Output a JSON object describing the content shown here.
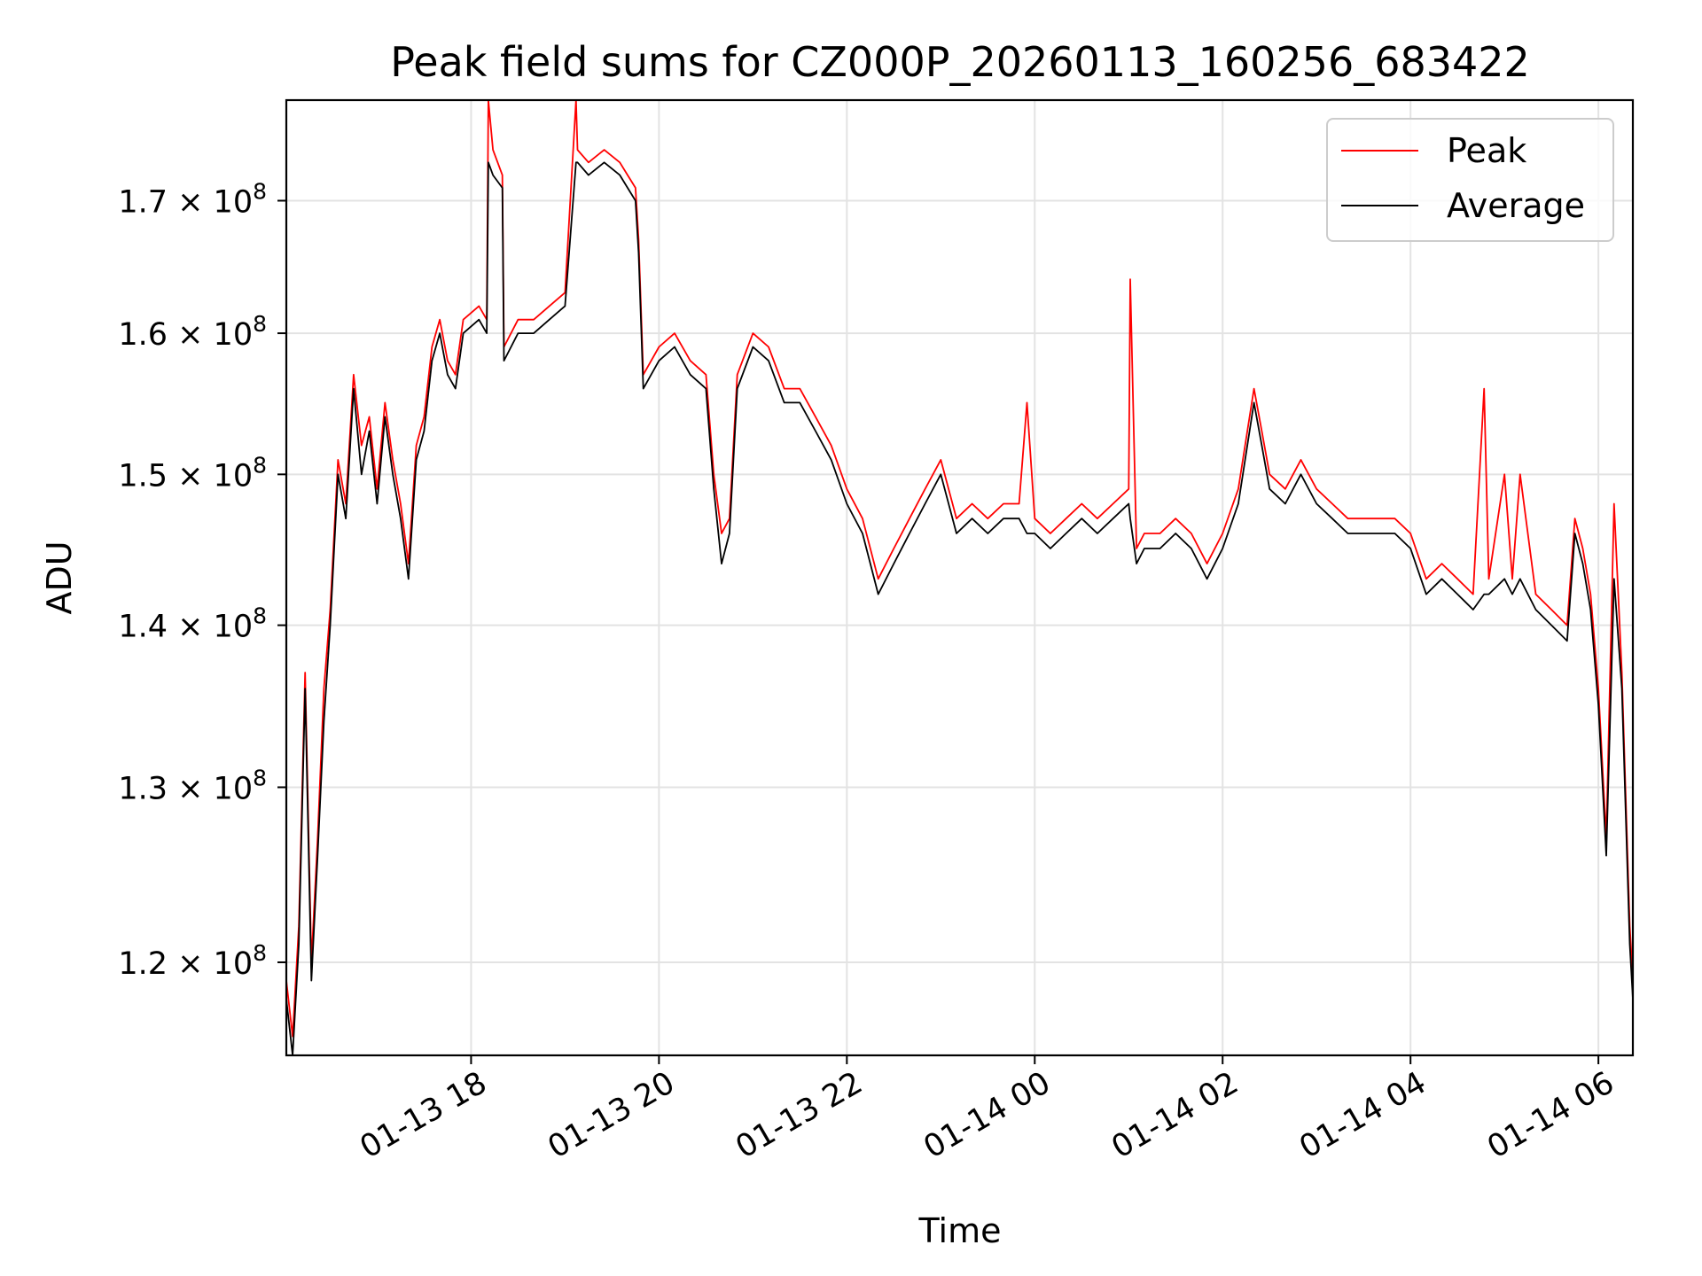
{
  "chart_data": {
    "type": "line",
    "title": "Peak field sums for CZ000P_20260113_160256_683422",
    "xlabel": "Time",
    "ylabel": "ADU",
    "y_scale": "log",
    "grid": true,
    "legend_position": "top-right",
    "xlim": [
      "2026-01-13 16:02",
      "2026-01-14 06:22"
    ],
    "ylim": [
      115000000,
      178000000
    ],
    "x_ticks": [
      {
        "value": "2026-01-13 18:00",
        "label": "01-13 18"
      },
      {
        "value": "2026-01-13 20:00",
        "label": "01-13 20"
      },
      {
        "value": "2026-01-13 22:00",
        "label": "01-13 22"
      },
      {
        "value": "2026-01-14 00:00",
        "label": "01-14 00"
      },
      {
        "value": "2026-01-14 02:00",
        "label": "01-14 02"
      },
      {
        "value": "2026-01-14 04:00",
        "label": "01-14 04"
      },
      {
        "value": "2026-01-14 06:00",
        "label": "01-14 06"
      }
    ],
    "y_ticks": [
      {
        "value": 120000000,
        "mantissa": "1.2",
        "exponent": "8"
      },
      {
        "value": 130000000,
        "mantissa": "1.3",
        "exponent": "8"
      },
      {
        "value": 140000000,
        "mantissa": "1.4",
        "exponent": "8"
      },
      {
        "value": 150000000,
        "mantissa": "1.5",
        "exponent": "8"
      },
      {
        "value": 160000000,
        "mantissa": "1.6",
        "exponent": "8"
      },
      {
        "value": 170000000,
        "mantissa": "1.7",
        "exponent": "8"
      }
    ],
    "series": [
      {
        "name": "Peak",
        "color": "#ff0000",
        "x": [
          "2026-01-13 16:02",
          "2026-01-13 16:06",
          "2026-01-13 16:10",
          "2026-01-13 16:14",
          "2026-01-13 16:18",
          "2026-01-13 16:22",
          "2026-01-13 16:26",
          "2026-01-13 16:30",
          "2026-01-13 16:35",
          "2026-01-13 16:40",
          "2026-01-13 16:45",
          "2026-01-13 16:50",
          "2026-01-13 16:55",
          "2026-01-13 17:00",
          "2026-01-13 17:05",
          "2026-01-13 17:10",
          "2026-01-13 17:15",
          "2026-01-13 17:20",
          "2026-01-13 17:25",
          "2026-01-13 17:30",
          "2026-01-13 17:35",
          "2026-01-13 17:40",
          "2026-01-13 17:45",
          "2026-01-13 17:50",
          "2026-01-13 17:55",
          "2026-01-13 18:05",
          "2026-01-13 18:10",
          "2026-01-13 18:11",
          "2026-01-13 18:14",
          "2026-01-13 18:20",
          "2026-01-13 18:21",
          "2026-01-13 18:30",
          "2026-01-13 18:40",
          "2026-01-13 18:50",
          "2026-01-13 19:00",
          "2026-01-13 19:07",
          "2026-01-13 19:08",
          "2026-01-13 19:15",
          "2026-01-13 19:25",
          "2026-01-13 19:35",
          "2026-01-13 19:40",
          "2026-01-13 19:45",
          "2026-01-13 19:47",
          "2026-01-13 19:50",
          "2026-01-13 20:00",
          "2026-01-13 20:10",
          "2026-01-13 20:20",
          "2026-01-13 20:30",
          "2026-01-13 20:35",
          "2026-01-13 20:40",
          "2026-01-13 20:45",
          "2026-01-13 20:50",
          "2026-01-13 21:00",
          "2026-01-13 21:10",
          "2026-01-13 21:20",
          "2026-01-13 21:30",
          "2026-01-13 21:40",
          "2026-01-13 21:50",
          "2026-01-13 22:00",
          "2026-01-13 22:10",
          "2026-01-13 22:20",
          "2026-01-13 22:30",
          "2026-01-13 22:40",
          "2026-01-13 22:50",
          "2026-01-13 23:00",
          "2026-01-13 23:10",
          "2026-01-13 23:20",
          "2026-01-13 23:30",
          "2026-01-13 23:40",
          "2026-01-13 23:50",
          "2026-01-13 23:55",
          "2026-01-14 00:00",
          "2026-01-14 00:10",
          "2026-01-14 00:20",
          "2026-01-14 00:30",
          "2026-01-14 00:40",
          "2026-01-14 00:50",
          "2026-01-14 01:00",
          "2026-01-14 01:01",
          "2026-01-14 01:05",
          "2026-01-14 01:10",
          "2026-01-14 01:20",
          "2026-01-14 01:30",
          "2026-01-14 01:40",
          "2026-01-14 01:50",
          "2026-01-14 02:00",
          "2026-01-14 02:10",
          "2026-01-14 02:20",
          "2026-01-14 02:25",
          "2026-01-14 02:30",
          "2026-01-14 02:40",
          "2026-01-14 02:50",
          "2026-01-14 03:00",
          "2026-01-14 03:10",
          "2026-01-14 03:20",
          "2026-01-14 03:30",
          "2026-01-14 03:40",
          "2026-01-14 03:50",
          "2026-01-14 04:00",
          "2026-01-14 04:10",
          "2026-01-14 04:20",
          "2026-01-14 04:30",
          "2026-01-14 04:40",
          "2026-01-14 04:47",
          "2026-01-14 04:50",
          "2026-01-14 05:00",
          "2026-01-14 05:05",
          "2026-01-14 05:10",
          "2026-01-14 05:20",
          "2026-01-14 05:30",
          "2026-01-14 05:40",
          "2026-01-14 05:45",
          "2026-01-14 05:50",
          "2026-01-14 05:55",
          "2026-01-14 06:00",
          "2026-01-14 06:05",
          "2026-01-14 06:10",
          "2026-01-14 06:15",
          "2026-01-14 06:20",
          "2026-01-14 06:22"
        ],
        "values": [
          119000000,
          116000000,
          122000000,
          137000000,
          120000000,
          127000000,
          136000000,
          141000000,
          151000000,
          148000000,
          157000000,
          152000000,
          154000000,
          149000000,
          155000000,
          151000000,
          148000000,
          144000000,
          152000000,
          154000000,
          159000000,
          161000000,
          158000000,
          157000000,
          161000000,
          162000000,
          161000000,
          178000000,
          174000000,
          172000000,
          159000000,
          161000000,
          161000000,
          162000000,
          163000000,
          178000000,
          174000000,
          173000000,
          174000000,
          173000000,
          172000000,
          171000000,
          167000000,
          157000000,
          159000000,
          160000000,
          158000000,
          157000000,
          150000000,
          146000000,
          147000000,
          157000000,
          160000000,
          159000000,
          156000000,
          156000000,
          154000000,
          152000000,
          149000000,
          147000000,
          143000000,
          145000000,
          147000000,
          149000000,
          151000000,
          147000000,
          148000000,
          147000000,
          148000000,
          148000000,
          155000000,
          147000000,
          146000000,
          147000000,
          148000000,
          147000000,
          148000000,
          149000000,
          164000000,
          145000000,
          146000000,
          146000000,
          147000000,
          146000000,
          144000000,
          146000000,
          149000000,
          156000000,
          153000000,
          150000000,
          149000000,
          151000000,
          149000000,
          148000000,
          147000000,
          147000000,
          147000000,
          147000000,
          146000000,
          143000000,
          144000000,
          143000000,
          142000000,
          156000000,
          143000000,
          150000000,
          143000000,
          150000000,
          142000000,
          141000000,
          140000000,
          147000000,
          145000000,
          142000000,
          136000000,
          127000000,
          148000000,
          137000000,
          122000000,
          119000000
        ]
      },
      {
        "name": "Average",
        "color": "#000000",
        "x": [
          "2026-01-13 16:02",
          "2026-01-13 16:06",
          "2026-01-13 16:10",
          "2026-01-13 16:14",
          "2026-01-13 16:18",
          "2026-01-13 16:22",
          "2026-01-13 16:26",
          "2026-01-13 16:30",
          "2026-01-13 16:35",
          "2026-01-13 16:40",
          "2026-01-13 16:45",
          "2026-01-13 16:50",
          "2026-01-13 16:55",
          "2026-01-13 17:00",
          "2026-01-13 17:05",
          "2026-01-13 17:10",
          "2026-01-13 17:15",
          "2026-01-13 17:20",
          "2026-01-13 17:25",
          "2026-01-13 17:30",
          "2026-01-13 17:35",
          "2026-01-13 17:40",
          "2026-01-13 17:45",
          "2026-01-13 17:50",
          "2026-01-13 17:55",
          "2026-01-13 18:05",
          "2026-01-13 18:10",
          "2026-01-13 18:11",
          "2026-01-13 18:14",
          "2026-01-13 18:20",
          "2026-01-13 18:21",
          "2026-01-13 18:30",
          "2026-01-13 18:40",
          "2026-01-13 18:50",
          "2026-01-13 19:00",
          "2026-01-13 19:07",
          "2026-01-13 19:08",
          "2026-01-13 19:15",
          "2026-01-13 19:25",
          "2026-01-13 19:35",
          "2026-01-13 19:40",
          "2026-01-13 19:45",
          "2026-01-13 19:47",
          "2026-01-13 19:50",
          "2026-01-13 20:00",
          "2026-01-13 20:10",
          "2026-01-13 20:20",
          "2026-01-13 20:30",
          "2026-01-13 20:35",
          "2026-01-13 20:40",
          "2026-01-13 20:45",
          "2026-01-13 20:50",
          "2026-01-13 21:00",
          "2026-01-13 21:10",
          "2026-01-13 21:20",
          "2026-01-13 21:30",
          "2026-01-13 21:40",
          "2026-01-13 21:50",
          "2026-01-13 22:00",
          "2026-01-13 22:10",
          "2026-01-13 22:20",
          "2026-01-13 22:30",
          "2026-01-13 22:40",
          "2026-01-13 22:50",
          "2026-01-13 23:00",
          "2026-01-13 23:10",
          "2026-01-13 23:20",
          "2026-01-13 23:30",
          "2026-01-13 23:40",
          "2026-01-13 23:50",
          "2026-01-13 23:55",
          "2026-01-14 00:00",
          "2026-01-14 00:10",
          "2026-01-14 00:20",
          "2026-01-14 00:30",
          "2026-01-14 00:40",
          "2026-01-14 00:50",
          "2026-01-14 01:00",
          "2026-01-14 01:01",
          "2026-01-14 01:05",
          "2026-01-14 01:10",
          "2026-01-14 01:20",
          "2026-01-14 01:30",
          "2026-01-14 01:40",
          "2026-01-14 01:50",
          "2026-01-14 02:00",
          "2026-01-14 02:10",
          "2026-01-14 02:20",
          "2026-01-14 02:25",
          "2026-01-14 02:30",
          "2026-01-14 02:40",
          "2026-01-14 02:50",
          "2026-01-14 03:00",
          "2026-01-14 03:10",
          "2026-01-14 03:20",
          "2026-01-14 03:30",
          "2026-01-14 03:40",
          "2026-01-14 03:50",
          "2026-01-14 04:00",
          "2026-01-14 04:10",
          "2026-01-14 04:20",
          "2026-01-14 04:30",
          "2026-01-14 04:40",
          "2026-01-14 04:47",
          "2026-01-14 04:50",
          "2026-01-14 05:00",
          "2026-01-14 05:05",
          "2026-01-14 05:10",
          "2026-01-14 05:20",
          "2026-01-14 05:30",
          "2026-01-14 05:40",
          "2026-01-14 05:45",
          "2026-01-14 05:50",
          "2026-01-14 05:55",
          "2026-01-14 06:00",
          "2026-01-14 06:05",
          "2026-01-14 06:10",
          "2026-01-14 06:15",
          "2026-01-14 06:20",
          "2026-01-14 06:22"
        ],
        "values": [
          118000000,
          115000000,
          121000000,
          136000000,
          119000000,
          126000000,
          134000000,
          140000000,
          150000000,
          147000000,
          156000000,
          150000000,
          153000000,
          148000000,
          154000000,
          150000000,
          147000000,
          143000000,
          151000000,
          153000000,
          158000000,
          160000000,
          157000000,
          156000000,
          160000000,
          161000000,
          160000000,
          173000000,
          172000000,
          171000000,
          158000000,
          160000000,
          160000000,
          161000000,
          162000000,
          173000000,
          173000000,
          172000000,
          173000000,
          172000000,
          171000000,
          170000000,
          166000000,
          156000000,
          158000000,
          159000000,
          157000000,
          156000000,
          149000000,
          144000000,
          146000000,
          156000000,
          159000000,
          158000000,
          155000000,
          155000000,
          153000000,
          151000000,
          148000000,
          146000000,
          142000000,
          144000000,
          146000000,
          148000000,
          150000000,
          146000000,
          147000000,
          146000000,
          147000000,
          147000000,
          146000000,
          146000000,
          145000000,
          146000000,
          147000000,
          146000000,
          147000000,
          148000000,
          147000000,
          144000000,
          145000000,
          145000000,
          146000000,
          145000000,
          143000000,
          145000000,
          148000000,
          155000000,
          152000000,
          149000000,
          148000000,
          150000000,
          148000000,
          147000000,
          146000000,
          146000000,
          146000000,
          146000000,
          145000000,
          142000000,
          143000000,
          142000000,
          141000000,
          142000000,
          142000000,
          143000000,
          142000000,
          143000000,
          141000000,
          140000000,
          139000000,
          146000000,
          144000000,
          141000000,
          135000000,
          126000000,
          143000000,
          136000000,
          121000000,
          118000000
        ]
      }
    ]
  }
}
